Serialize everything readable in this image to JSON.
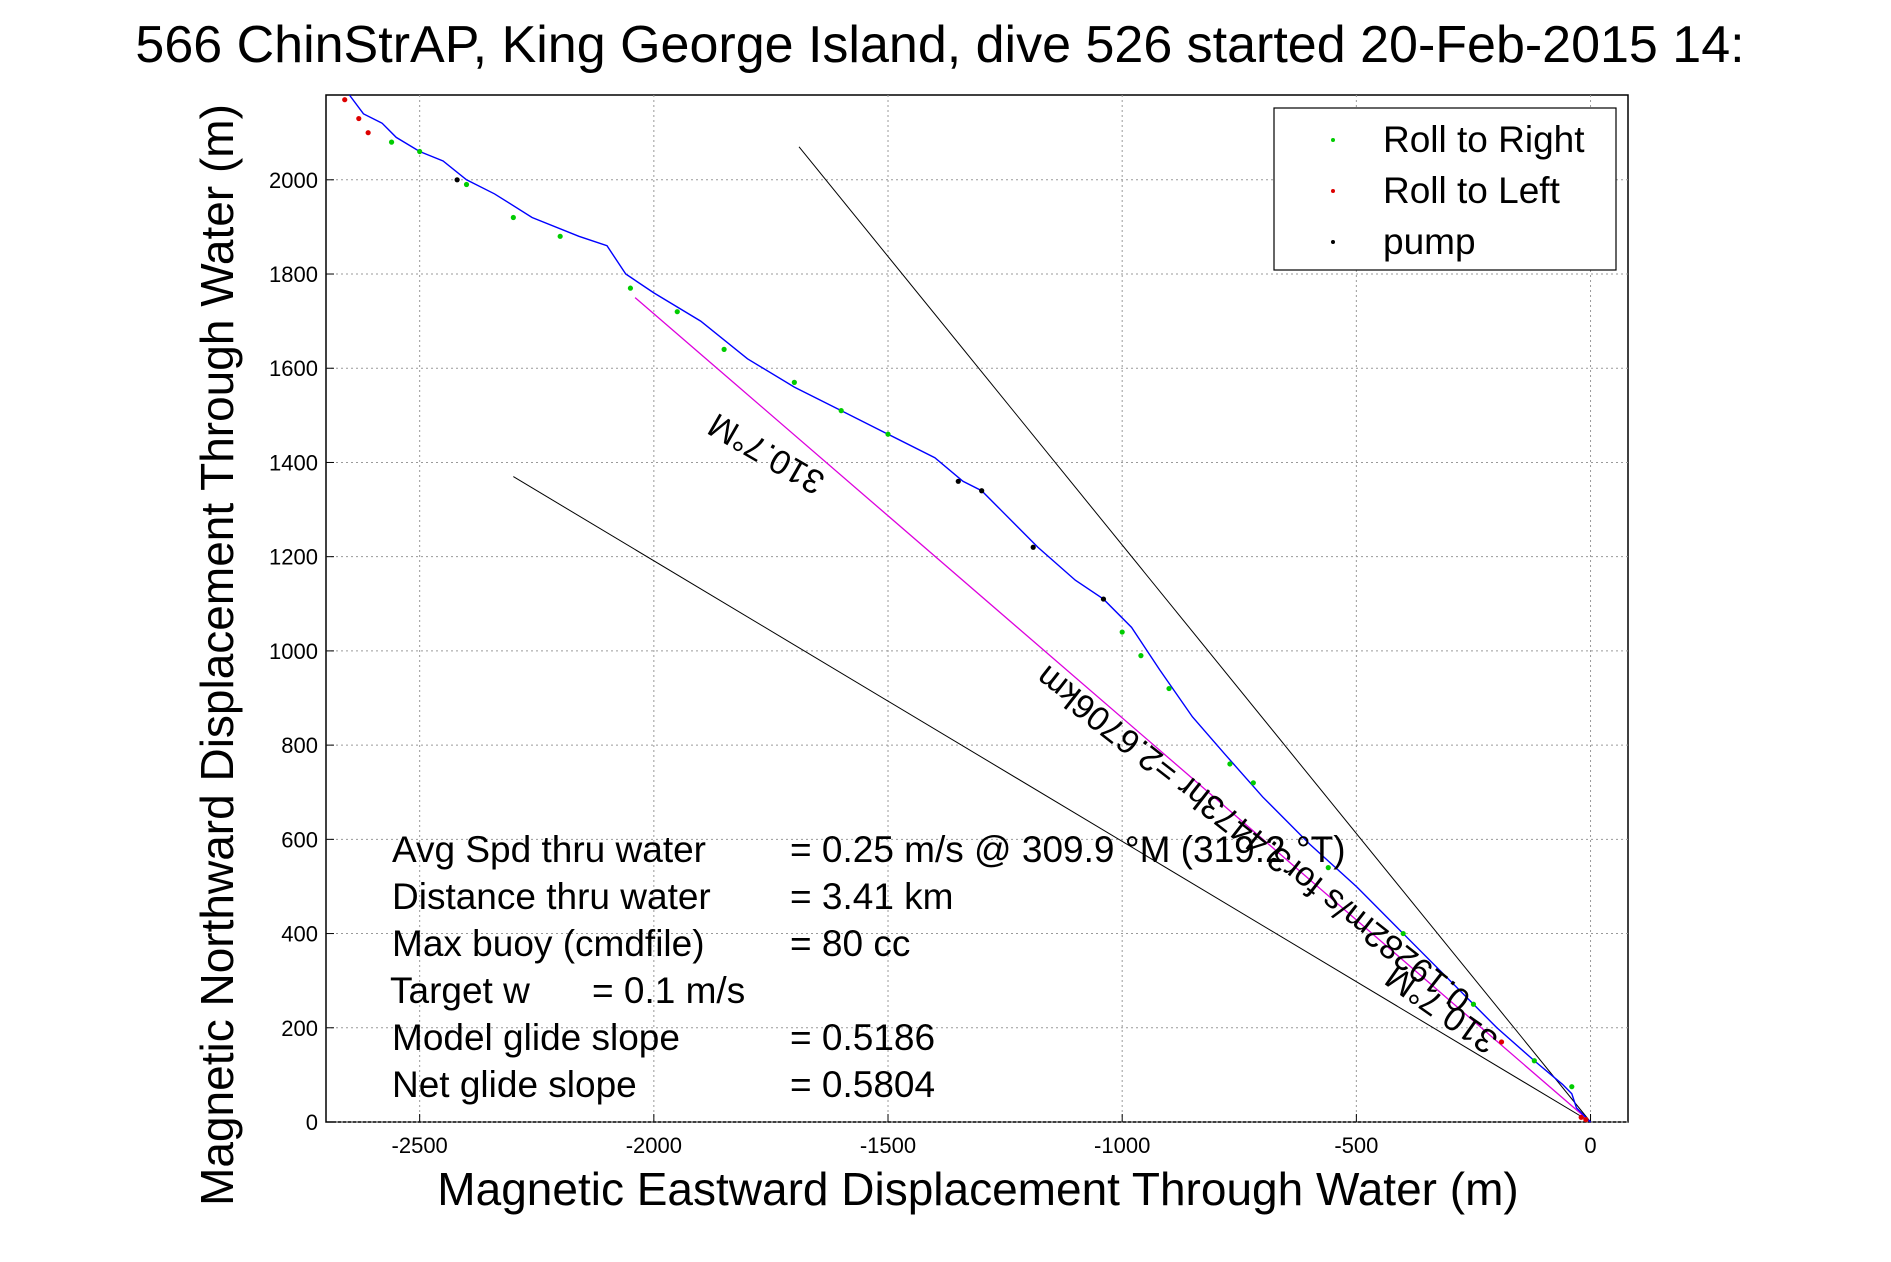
{
  "figure": {
    "title": "566 ChinStrAP, King George Island, dive 526 started 20-Feb-2015 14:",
    "xlabel": "Magnetic Eastward Displacement Through Water (m)",
    "ylabel": "Magnetic Northward Displacement Through Water (m)"
  },
  "stats": {
    "rows": [
      {
        "label": "Avg Spd thru water",
        "value": "=  0.25 m/s @ 309.9 °M (319.2 °T)"
      },
      {
        "label": "Distance thru water",
        "value": "=  3.41 km"
      },
      {
        "label": "Max buoy (cmdfile)",
        "value": "= 80 cc"
      },
      {
        "label": "Target w",
        "value": "= 0.1 m/s"
      },
      {
        "label": "Model glide slope",
        "value": "= 0.5186"
      },
      {
        "label": "Net glide slope",
        "value": "= 0.5804"
      }
    ]
  },
  "annotations": {
    "heading_upper": "310.7°M",
    "heading_lower": "310.7°M",
    "current_text": "0.19282m/s for3.4473hr =2.6706km"
  },
  "colors": {
    "roll_right": "#00cc00",
    "roll_left": "#dd0000",
    "pump": "#000000",
    "track": "#0000ff",
    "current_line": "#dd00dd",
    "grid": "#9a9a9a"
  },
  "chart_data": {
    "type": "scatter",
    "xlim": [
      -2700,
      80
    ],
    "ylim": [
      0,
      2180
    ],
    "xticks": [
      -2500,
      -2000,
      -1500,
      -1000,
      -500,
      0
    ],
    "yticks": [
      0,
      200,
      400,
      600,
      800,
      1000,
      1200,
      1400,
      1600,
      1800,
      2000
    ],
    "grid": true,
    "legend_position": "top-right",
    "legend": [
      {
        "name": "Roll to Right",
        "color": "#00cc00"
      },
      {
        "name": "Roll to Left",
        "color": "#dd0000"
      },
      {
        "name": "pump",
        "color": "#000000"
      }
    ],
    "track": {
      "x": [
        0,
        -30,
        -40,
        -60,
        -120,
        -200,
        -300,
        -400,
        -500,
        -600,
        -700,
        -780,
        -850,
        -920,
        -980,
        -1040,
        -1100,
        -1180,
        -1260,
        -1300,
        -1340,
        -1400,
        -1500,
        -1600,
        -1700,
        -1800,
        -1900,
        -2000,
        -2060,
        -2100,
        -2160,
        -2260,
        -2340,
        -2400,
        -2450,
        -2500,
        -2550,
        -2580,
        -2620,
        -2650
      ],
      "y": [
        0,
        30,
        60,
        80,
        130,
        200,
        300,
        400,
        500,
        590,
        690,
        780,
        860,
        960,
        1050,
        1110,
        1150,
        1220,
        1300,
        1340,
        1360,
        1410,
        1460,
        1510,
        1560,
        1620,
        1700,
        1760,
        1800,
        1860,
        1880,
        1920,
        1970,
        2000,
        2040,
        2060,
        2090,
        2120,
        2140,
        2180
      ]
    },
    "roll_right": {
      "x": [
        -40,
        -120,
        -250,
        -400,
        -560,
        -720,
        -770,
        -900,
        -960,
        -1000,
        -1500,
        -1600,
        -1700,
        -1850,
        -1950,
        -2050,
        -2200,
        -2300,
        -2400,
        -2500,
        -2560
      ],
      "y": [
        75,
        130,
        250,
        400,
        540,
        720,
        760,
        920,
        990,
        1040,
        1460,
        1510,
        1570,
        1640,
        1720,
        1770,
        1880,
        1920,
        1990,
        2060,
        2080
      ]
    },
    "roll_left": {
      "x": [
        -10,
        -20,
        -190,
        -2610,
        -2630,
        -2660
      ],
      "y": [
        5,
        10,
        170,
        2100,
        2130,
        2170
      ]
    },
    "pump": {
      "x": [
        -1040,
        -1190,
        -1300,
        -1350,
        -2420
      ],
      "y": [
        1110,
        1220,
        1340,
        1360,
        2000
      ]
    },
    "heading_lines": [
      {
        "x": [
          0,
          -1690
        ],
        "y": [
          0,
          2070
        ]
      },
      {
        "x": [
          0,
          -2300
        ],
        "y": [
          0,
          1370
        ]
      }
    ],
    "current_line": {
      "x": [
        0,
        -2040
      ],
      "y": [
        0,
        1750
      ]
    }
  }
}
